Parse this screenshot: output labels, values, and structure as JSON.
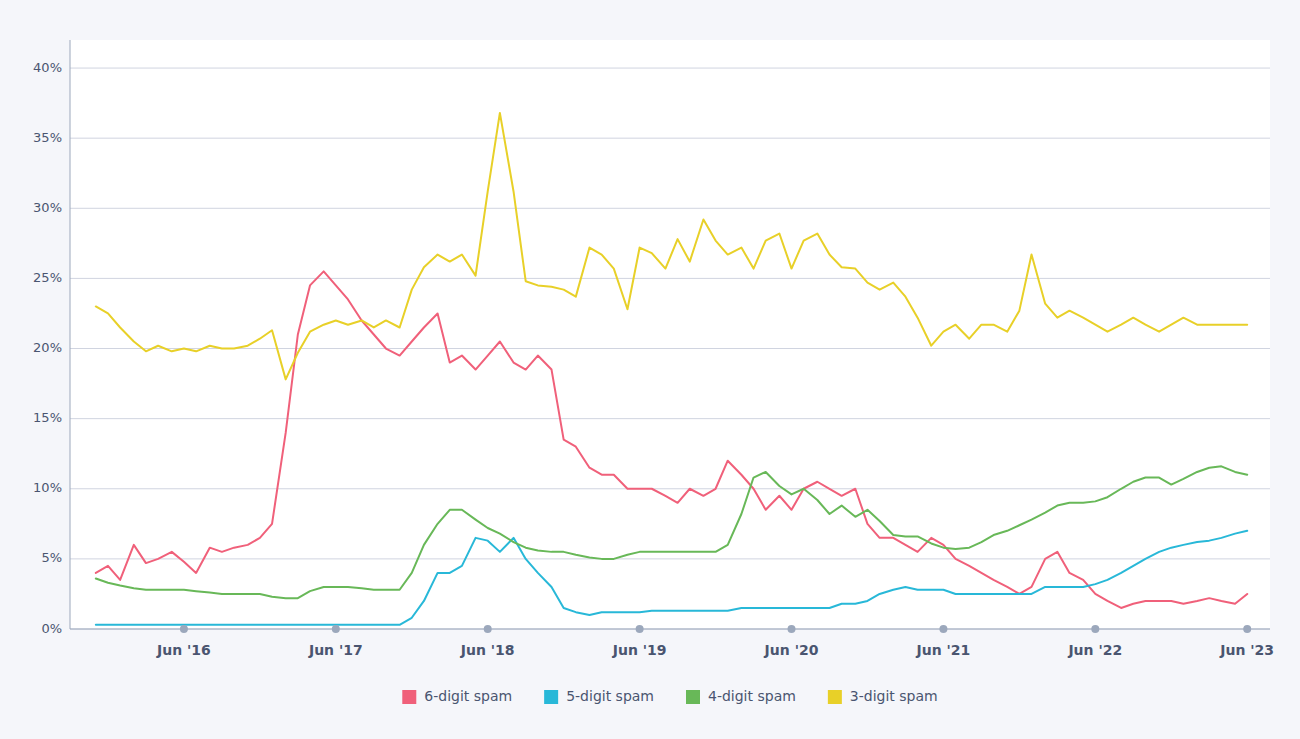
{
  "chart_data": {
    "type": "line",
    "x": [
      2015.92,
      2016.0,
      2016.08,
      2016.17,
      2016.25,
      2016.33,
      2016.42,
      2016.5,
      2016.58,
      2016.67,
      2016.75,
      2016.83,
      2016.92,
      2017.0,
      2017.08,
      2017.17,
      2017.25,
      2017.33,
      2017.42,
      2017.5,
      2017.58,
      2017.67,
      2017.75,
      2017.83,
      2017.92,
      2018.0,
      2018.08,
      2018.17,
      2018.25,
      2018.33,
      2018.42,
      2018.5,
      2018.58,
      2018.67,
      2018.75,
      2018.83,
      2018.92,
      2019.0,
      2019.08,
      2019.17,
      2019.25,
      2019.33,
      2019.42,
      2019.5,
      2019.58,
      2019.67,
      2019.75,
      2019.83,
      2019.92,
      2020.0,
      2020.08,
      2020.17,
      2020.25,
      2020.33,
      2020.42,
      2020.5,
      2020.58,
      2020.67,
      2020.75,
      2020.83,
      2020.92,
      2021.0,
      2021.08,
      2021.17,
      2021.25,
      2021.33,
      2021.42,
      2021.5,
      2021.58,
      2021.67,
      2021.75,
      2021.83,
      2021.92,
      2022.0,
      2022.08,
      2022.17,
      2022.25,
      2022.33,
      2022.42,
      2022.5,
      2022.58,
      2022.67,
      2022.75,
      2022.83,
      2022.92,
      2023.0,
      2023.08,
      2023.17,
      2023.25,
      2023.33,
      2023.42,
      2023.5
    ],
    "series": [
      {
        "name": "6-digit spam",
        "color": "#f0607a",
        "values": [
          0.04,
          0.045,
          0.035,
          0.06,
          0.047,
          0.05,
          0.055,
          0.048,
          0.04,
          0.058,
          0.055,
          0.058,
          0.06,
          0.065,
          0.075,
          0.14,
          0.21,
          0.245,
          0.255,
          0.245,
          0.235,
          0.22,
          0.21,
          0.2,
          0.195,
          0.205,
          0.215,
          0.225,
          0.19,
          0.195,
          0.185,
          0.195,
          0.205,
          0.19,
          0.185,
          0.195,
          0.185,
          0.135,
          0.13,
          0.115,
          0.11,
          0.11,
          0.1,
          0.1,
          0.1,
          0.095,
          0.09,
          0.1,
          0.095,
          0.1,
          0.12,
          0.11,
          0.1,
          0.085,
          0.095,
          0.085,
          0.1,
          0.105,
          0.1,
          0.095,
          0.1,
          0.075,
          0.065,
          0.065,
          0.06,
          0.055,
          0.065,
          0.06,
          0.05,
          0.045,
          0.04,
          0.035,
          0.03,
          0.025,
          0.03,
          0.05,
          0.055,
          0.04,
          0.035,
          0.025,
          0.02,
          0.015,
          0.018,
          0.02,
          0.02,
          0.02,
          0.018,
          0.02,
          0.022,
          0.02,
          0.018,
          0.025
        ]
      },
      {
        "name": "5-digit spam",
        "color": "#28b8d8",
        "values": [
          0.003,
          0.003,
          0.003,
          0.003,
          0.003,
          0.003,
          0.003,
          0.003,
          0.003,
          0.003,
          0.003,
          0.003,
          0.003,
          0.003,
          0.003,
          0.003,
          0.003,
          0.003,
          0.003,
          0.003,
          0.003,
          0.003,
          0.003,
          0.003,
          0.003,
          0.008,
          0.02,
          0.04,
          0.04,
          0.045,
          0.065,
          0.063,
          0.055,
          0.065,
          0.05,
          0.04,
          0.03,
          0.015,
          0.012,
          0.01,
          0.012,
          0.012,
          0.012,
          0.012,
          0.013,
          0.013,
          0.013,
          0.013,
          0.013,
          0.013,
          0.013,
          0.015,
          0.015,
          0.015,
          0.015,
          0.015,
          0.015,
          0.015,
          0.015,
          0.018,
          0.018,
          0.02,
          0.025,
          0.028,
          0.03,
          0.028,
          0.028,
          0.028,
          0.025,
          0.025,
          0.025,
          0.025,
          0.025,
          0.025,
          0.025,
          0.03,
          0.03,
          0.03,
          0.03,
          0.032,
          0.035,
          0.04,
          0.045,
          0.05,
          0.055,
          0.058,
          0.06,
          0.062,
          0.063,
          0.065,
          0.068,
          0.07
        ]
      },
      {
        "name": "4-digit spam",
        "color": "#68b858",
        "values": [
          0.036,
          0.033,
          0.031,
          0.029,
          0.028,
          0.028,
          0.028,
          0.028,
          0.027,
          0.026,
          0.025,
          0.025,
          0.025,
          0.025,
          0.023,
          0.022,
          0.022,
          0.027,
          0.03,
          0.03,
          0.03,
          0.029,
          0.028,
          0.028,
          0.028,
          0.04,
          0.06,
          0.075,
          0.085,
          0.085,
          0.078,
          0.072,
          0.068,
          0.062,
          0.058,
          0.056,
          0.055,
          0.055,
          0.053,
          0.051,
          0.05,
          0.05,
          0.053,
          0.055,
          0.055,
          0.055,
          0.055,
          0.055,
          0.055,
          0.055,
          0.06,
          0.082,
          0.108,
          0.112,
          0.102,
          0.096,
          0.1,
          0.092,
          0.082,
          0.088,
          0.08,
          0.085,
          0.077,
          0.067,
          0.066,
          0.066,
          0.061,
          0.058,
          0.057,
          0.058,
          0.062,
          0.067,
          0.07,
          0.074,
          0.078,
          0.083,
          0.088,
          0.09,
          0.09,
          0.091,
          0.094,
          0.1,
          0.105,
          0.108,
          0.108,
          0.103,
          0.107,
          0.112,
          0.115,
          0.116,
          0.112,
          0.11
        ]
      },
      {
        "name": "3-digit spam",
        "color": "#e8d028",
        "values": [
          0.23,
          0.225,
          0.215,
          0.205,
          0.198,
          0.202,
          0.198,
          0.2,
          0.198,
          0.202,
          0.2,
          0.2,
          0.202,
          0.207,
          0.213,
          0.178,
          0.197,
          0.212,
          0.217,
          0.22,
          0.217,
          0.22,
          0.215,
          0.22,
          0.215,
          0.242,
          0.258,
          0.267,
          0.262,
          0.267,
          0.252,
          0.312,
          0.368,
          0.312,
          0.248,
          0.245,
          0.244,
          0.242,
          0.237,
          0.272,
          0.267,
          0.257,
          0.228,
          0.272,
          0.268,
          0.257,
          0.278,
          0.262,
          0.292,
          0.277,
          0.267,
          0.272,
          0.257,
          0.277,
          0.282,
          0.257,
          0.277,
          0.282,
          0.267,
          0.258,
          0.257,
          0.247,
          0.242,
          0.247,
          0.237,
          0.222,
          0.202,
          0.212,
          0.217,
          0.207,
          0.217,
          0.217,
          0.212,
          0.227,
          0.267,
          0.232,
          0.222,
          0.227,
          0.222,
          0.217,
          0.212,
          0.217,
          0.222,
          0.217,
          0.212,
          0.217,
          0.222,
          0.217,
          0.217,
          0.217,
          0.217,
          0.217
        ]
      }
    ],
    "xlim": [
      2015.75,
      2023.65
    ],
    "xticks": [
      {
        "value": 2016.5,
        "label": "Jun '16"
      },
      {
        "value": 2017.5,
        "label": "Jun '17"
      },
      {
        "value": 2018.5,
        "label": "Jun '18"
      },
      {
        "value": 2019.5,
        "label": "Jun '19"
      },
      {
        "value": 2020.5,
        "label": "Jun '20"
      },
      {
        "value": 2021.5,
        "label": "Jun '21"
      },
      {
        "value": 2022.5,
        "label": "Jun '22"
      },
      {
        "value": 2023.5,
        "label": "Jun '23"
      }
    ],
    "ylim": [
      0,
      0.42
    ],
    "yticks": [
      {
        "value": 0,
        "label": "0%"
      },
      {
        "value": 0.05,
        "label": "5%"
      },
      {
        "value": 0.1,
        "label": "10%"
      },
      {
        "value": 0.15,
        "label": "15%"
      },
      {
        "value": 0.2,
        "label": "20%"
      },
      {
        "value": 0.25,
        "label": "25%"
      },
      {
        "value": 0.3,
        "label": "30%"
      },
      {
        "value": 0.35,
        "label": "35%"
      },
      {
        "value": 0.4,
        "label": "40%"
      }
    ],
    "grid": "y",
    "legend": "bottom"
  }
}
